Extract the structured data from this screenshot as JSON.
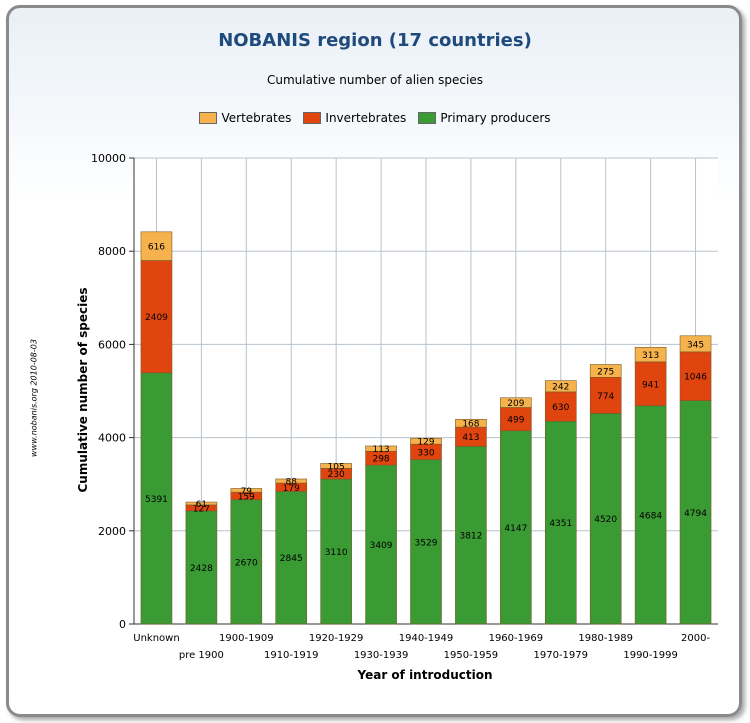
{
  "chart_data": {
    "type": "bar",
    "stacked": true,
    "title": "NOBANIS region (17 countries)",
    "subtitle": "Cumulative number of alien species",
    "xlabel": "Year of introduction",
    "ylabel": "Cumulative number of species",
    "ylim": [
      0,
      10000
    ],
    "yticks": [
      0,
      2000,
      4000,
      6000,
      8000,
      10000
    ],
    "grid": true,
    "legend_position": "top-center",
    "categories": [
      "Unknown",
      "pre 1900",
      "1900-1909",
      "1910-1919",
      "1920-1929",
      "1930-1939",
      "1940-1949",
      "1950-1959",
      "1960-1969",
      "1970-1979",
      "1980-1989",
      "1990-1999",
      "2000-"
    ],
    "series": [
      {
        "name": "Primary producers",
        "color": "#3a9a34",
        "values": [
          5391,
          2428,
          2670,
          2845,
          3110,
          3409,
          3529,
          3812,
          4147,
          4351,
          4520,
          4684,
          4794
        ]
      },
      {
        "name": "Invertebrates",
        "color": "#e0450f",
        "values": [
          2409,
          127,
          159,
          179,
          230,
          298,
          330,
          413,
          499,
          630,
          774,
          941,
          1046
        ]
      },
      {
        "name": "Vertebrates",
        "color": "#f6b24c",
        "values": [
          616,
          61,
          79,
          88,
          105,
          113,
          129,
          168,
          209,
          242,
          275,
          313,
          345
        ]
      }
    ],
    "legend_order": [
      "Vertebrates",
      "Invertebrates",
      "Primary producers"
    ]
  },
  "watermark": "www.nobanis.org 2010-08-03"
}
